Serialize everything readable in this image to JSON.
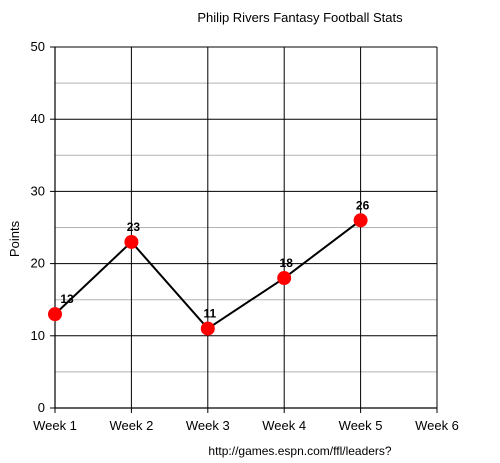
{
  "chart_data": {
    "type": "line",
    "title": "Philip Rivers Fantasy Football Stats",
    "xlabel": "",
    "ylabel": "Points",
    "categories": [
      "Week 1",
      "Week 2",
      "Week 3",
      "Week 4",
      "Week 5",
      "Week 6"
    ],
    "series": [
      {
        "values": [
          13,
          23,
          11,
          18,
          26,
          null
        ]
      }
    ],
    "ylim": [
      0,
      50
    ],
    "y_major_ticks": [
      0,
      10,
      20,
      30,
      40,
      50
    ],
    "y_minor_step": 5,
    "grid": true,
    "data_labels": true,
    "marker_color": "#ff0000",
    "line_color": "#000000",
    "source_note": "http://games.espn.com/ffl/leaders?"
  }
}
